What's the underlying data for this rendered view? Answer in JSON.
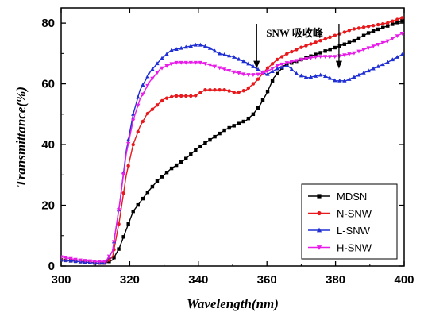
{
  "chart_data": {
    "type": "line",
    "title": "",
    "xlabel": "Wavelength(nm)",
    "ylabel": "Transmittance(%)",
    "xlim": [
      300,
      400
    ],
    "ylim": [
      0,
      85
    ],
    "xticks": [
      300,
      320,
      340,
      360,
      380,
      400
    ],
    "yticks": [
      0,
      20,
      40,
      60,
      80
    ],
    "grid": false,
    "legend_position": "bottom-right",
    "annotation": {
      "text": "SNW 吸收峰",
      "arrows_x": [
        357,
        381
      ]
    },
    "series": [
      {
        "name": "MDSN",
        "color": "#000000",
        "marker": "square",
        "x": [
          300,
          305,
          310,
          313,
          315,
          317,
          319,
          321,
          323,
          325,
          328,
          332,
          336,
          340,
          344,
          348,
          352,
          354,
          356,
          358,
          360,
          362,
          365,
          370,
          375,
          380,
          385,
          390,
          395,
          400
        ],
        "y": [
          2,
          1.5,
          1,
          1,
          2,
          6,
          12,
          18,
          21,
          24,
          28,
          32,
          35,
          39,
          42,
          45,
          47,
          48,
          50,
          53,
          57,
          62,
          66,
          68,
          70,
          72,
          74,
          77,
          79,
          81
        ]
      },
      {
        "name": "N-SNW",
        "color": "#e8191c",
        "marker": "circle",
        "x": [
          300,
          305,
          310,
          313,
          315,
          317,
          319,
          321,
          323,
          325,
          327,
          330,
          333,
          336,
          339,
          342,
          345,
          348,
          351,
          354,
          357,
          360,
          363,
          366,
          370,
          375,
          380,
          385,
          390,
          395,
          400
        ],
        "y": [
          2,
          1.5,
          1,
          1,
          3,
          15,
          30,
          40,
          46,
          50,
          52,
          55,
          56,
          56,
          56,
          58,
          58,
          58,
          57,
          58,
          61,
          65,
          68,
          70,
          72,
          74,
          76,
          78,
          79,
          80,
          82
        ]
      },
      {
        "name": "L-SNW",
        "color": "#1f2fd3",
        "marker": "triangle",
        "x": [
          300,
          305,
          310,
          313,
          315,
          317,
          319,
          321,
          323,
          326,
          329,
          332,
          336,
          340,
          343,
          346,
          350,
          354,
          357,
          360,
          363,
          366,
          369,
          372,
          376,
          380,
          383,
          387,
          391,
          395,
          400
        ],
        "y": [
          2,
          1.5,
          1,
          1,
          5,
          20,
          38,
          50,
          58,
          64,
          68,
          71,
          72,
          73,
          72,
          70,
          69,
          67,
          65,
          63,
          65,
          66,
          63,
          62,
          63,
          61,
          61,
          63,
          65,
          67,
          70
        ]
      },
      {
        "name": "H-SNW",
        "color": "#e81ce8",
        "marker": "triangle-down",
        "x": [
          300,
          305,
          310,
          313,
          315,
          317,
          319,
          321,
          323,
          326,
          329,
          333,
          337,
          341,
          344,
          347,
          350,
          354,
          357,
          360,
          363,
          366,
          370,
          375,
          380,
          385,
          390,
          395,
          400
        ],
        "y": [
          3,
          2,
          1.5,
          1.5,
          5,
          20,
          37,
          48,
          55,
          61,
          65,
          67,
          67,
          67,
          66,
          65,
          64,
          63,
          63,
          64,
          66,
          67,
          68,
          69,
          69,
          70,
          72,
          74,
          77
        ]
      }
    ]
  }
}
